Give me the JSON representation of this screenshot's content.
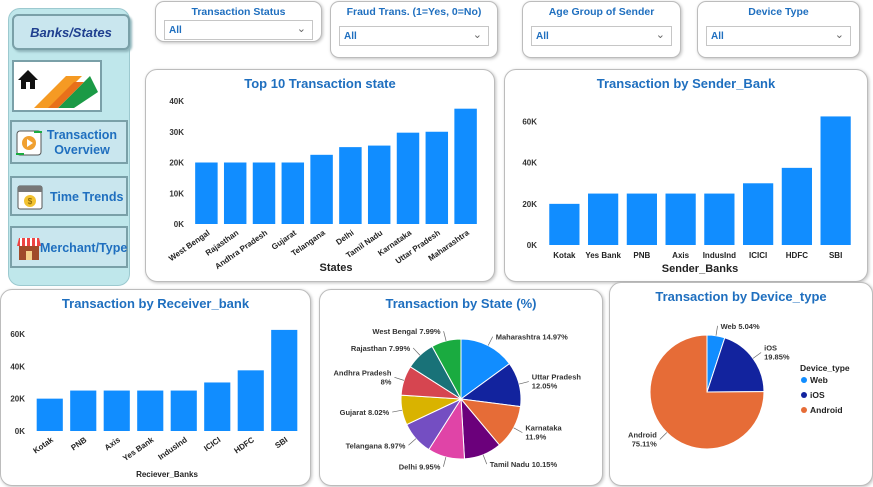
{
  "sidebar": {
    "title": "Banks/States",
    "items": [
      {
        "label": "Transaction Overview",
        "icon": "transaction-overview-icon"
      },
      {
        "label": "Time Trends",
        "icon": "calendar-money-icon"
      },
      {
        "label": "Merchant/Type",
        "icon": "store-icon"
      }
    ]
  },
  "slicers": [
    {
      "label": "Transaction Status",
      "value": "All"
    },
    {
      "label": "Fraud Trans. (1=Yes, 0=No)",
      "value": "All"
    },
    {
      "label": "Age Group of Sender",
      "value": "All"
    },
    {
      "label": "Device Type",
      "value": "All"
    }
  ],
  "colors": {
    "bar": "#118dff",
    "title": "#1f6fbf",
    "sidebar_bg": "#bfe7eb"
  },
  "chart_data": [
    {
      "type": "bar",
      "title": "Top 10 Transaction state",
      "xlabel": "States",
      "ylabel": "",
      "categories": [
        "West Bengal",
        "Rajasthan",
        "Andhra Pradesh",
        "Gujarat",
        "Telangana",
        "Delhi",
        "Tamil Nadu",
        "Karnataka",
        "Uttar Pradesh",
        "Maharashtra"
      ],
      "values": [
        20000,
        20000,
        20000,
        20000,
        22500,
        25000,
        25500,
        29700,
        30000,
        37500
      ],
      "ylim": [
        0,
        40000
      ],
      "yticks": [
        "0K",
        "10K",
        "20K",
        "30K",
        "40K"
      ]
    },
    {
      "type": "bar",
      "title": "Transaction by Sender_Bank",
      "xlabel": "Sender_Banks",
      "ylabel": "",
      "categories": [
        "Kotak",
        "Yes Bank",
        "PNB",
        "Axis",
        "IndusInd",
        "ICICI",
        "HDFC",
        "SBI"
      ],
      "values": [
        20000,
        25000,
        25000,
        25000,
        25000,
        30000,
        37500,
        62500
      ],
      "ylim": [
        0,
        70000
      ],
      "yticks": [
        "0K",
        "20K",
        "40K",
        "60K"
      ]
    },
    {
      "type": "bar",
      "title": "Transaction by Receiver_bank",
      "xlabel": "Reciever_Banks",
      "ylabel": "",
      "categories": [
        "Kotak",
        "PNB",
        "Axis",
        "Yes Bank",
        "IndusInd",
        "ICICI",
        "HDFC",
        "SBI"
      ],
      "values": [
        20000,
        25000,
        25000,
        25000,
        25000,
        30000,
        37500,
        62500
      ],
      "ylim": [
        0,
        68000
      ],
      "yticks": [
        "0K",
        "20K",
        "40K",
        "60K"
      ]
    },
    {
      "type": "pie",
      "title": "Transaction by State (%)",
      "slices": [
        {
          "name": "Maharashtra",
          "pct": 14.97,
          "label": "Maharashtra 14.97%",
          "color": "#118dff"
        },
        {
          "name": "Uttar Pradesh",
          "pct": 12.05,
          "label": "Uttar Pradesh 12.05%",
          "color": "#12239e"
        },
        {
          "name": "Karnataka",
          "pct": 11.9,
          "label": "Karnataka 11.9%",
          "color": "#e66c37"
        },
        {
          "name": "Tamil Nadu",
          "pct": 10.15,
          "label": "Tamil Nadu 10.15%",
          "color": "#6b007b"
        },
        {
          "name": "Delhi",
          "pct": 9.95,
          "label": "Delhi 9.95%",
          "color": "#e044a7"
        },
        {
          "name": "Telangana",
          "pct": 8.97,
          "label": "Telangana 8.97%",
          "color": "#744ec2"
        },
        {
          "name": "Gujarat",
          "pct": 8.02,
          "label": "Gujarat 8.02%",
          "color": "#d9b300"
        },
        {
          "name": "Andhra Pradesh",
          "pct": 8.0,
          "label": "Andhra Pradesh 8%",
          "color": "#d64550"
        },
        {
          "name": "Rajasthan",
          "pct": 7.99,
          "label": "Rajasthan 7.99%",
          "color": "#197278"
        },
        {
          "name": "West Bengal",
          "pct": 7.99,
          "label": "West Bengal 7.99%",
          "color": "#1aab40"
        }
      ]
    },
    {
      "type": "pie",
      "title": "Transaction by Device_type",
      "legend_title": "Device_type",
      "legend_position": "right",
      "slices": [
        {
          "name": "Web",
          "pct": 5.04,
          "label": "Web 5.04%",
          "color": "#118dff"
        },
        {
          "name": "iOS",
          "pct": 19.85,
          "label": "iOS 19.85%",
          "color": "#12239e"
        },
        {
          "name": "Android",
          "pct": 75.11,
          "label": "Android 75.11%",
          "color": "#e66c37"
        }
      ]
    }
  ]
}
